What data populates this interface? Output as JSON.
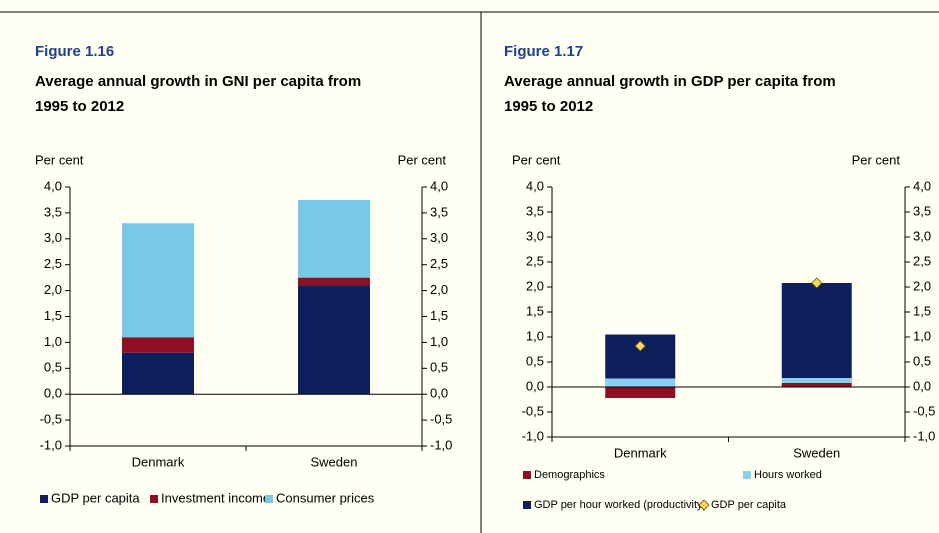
{
  "chart_data": [
    {
      "type": "bar",
      "stacked": true,
      "title": "Figure 1.16",
      "subtitle": "Average annual growth in GNI per capita from 1995 to 2012",
      "y_label": "Per cent",
      "y2_label": "Per cent",
      "categories": [
        "Denmark",
        "Sweden"
      ],
      "series": [
        {
          "name": "GDP per capita",
          "color": "#0e1f5e",
          "values": [
            0.8,
            2.1
          ]
        },
        {
          "name": "Investment income",
          "color": "#8e0f24",
          "values": [
            0.3,
            0.15
          ]
        },
        {
          "name": "Consumer prices",
          "color": "#78c8e6",
          "values": [
            2.2,
            1.5
          ]
        }
      ],
      "ylim": [
        -1,
        4
      ],
      "yticks": [
        {
          "value": -1,
          "label": "-1,0"
        },
        {
          "value": -0.5,
          "label": "-0,5"
        },
        {
          "value": 0,
          "label": "0,0"
        },
        {
          "value": 0.5,
          "label": "0,5"
        },
        {
          "value": 1,
          "label": "1,0"
        },
        {
          "value": 1.5,
          "label": "1,5"
        },
        {
          "value": 2,
          "label": "2,0"
        },
        {
          "value": 2.5,
          "label": "2,5"
        },
        {
          "value": 3,
          "label": "3,0"
        },
        {
          "value": 3.5,
          "label": "3,5"
        },
        {
          "value": 4,
          "label": "4,0"
        }
      ],
      "y2lim": [
        -1,
        4
      ],
      "y2ticks": [
        {
          "value": -1,
          "label": "-1,0"
        },
        {
          "value": -0.5,
          "label": "-0,5"
        },
        {
          "value": 0,
          "label": "0,0"
        },
        {
          "value": 0.5,
          "label": "0,5"
        },
        {
          "value": 1,
          "label": "1,0"
        },
        {
          "value": 1.5,
          "label": "1,5"
        },
        {
          "value": 2,
          "label": "2,0"
        },
        {
          "value": 2.5,
          "label": "2,5"
        },
        {
          "value": 3,
          "label": "3,0"
        },
        {
          "value": 3.5,
          "label": "3,5"
        },
        {
          "value": 4,
          "label": "4,0"
        }
      ]
    },
    {
      "type": "bar",
      "stacked": true,
      "title": "Figure 1.17",
      "subtitle": "Average annual growth in GDP per capita from 1995 to 2012",
      "y_label": "Per cent",
      "y2_label": "Per cent",
      "categories": [
        "Denmark",
        "Sweden"
      ],
      "series": [
        {
          "name": "Demographics",
          "color": "#8e0f24",
          "values": [
            -0.22,
            0.08
          ]
        },
        {
          "name": "Hours worked",
          "color": "#8bd0ea",
          "values": [
            0.17,
            0.1
          ]
        },
        {
          "name": "GDP per hour worked (productivity)",
          "color": "#0e1f5e",
          "values": [
            0.88,
            1.9
          ]
        },
        {
          "name": "GDP per capita",
          "type": "scatter",
          "marker": "diamond",
          "color": "#f5d55c",
          "values": [
            0.82,
            2.08
          ]
        }
      ],
      "ylim": [
        -1,
        4
      ],
      "yticks": [
        {
          "value": -1,
          "label": "-1,0"
        },
        {
          "value": -0.5,
          "label": "-0,5"
        },
        {
          "value": 0,
          "label": "0,0"
        },
        {
          "value": 0.5,
          "label": "0,5"
        },
        {
          "value": 1,
          "label": "1,0"
        },
        {
          "value": 1.5,
          "label": "1,5"
        },
        {
          "value": 2,
          "label": "2,0"
        },
        {
          "value": 2.5,
          "label": "2,5"
        },
        {
          "value": 3,
          "label": "3,0"
        },
        {
          "value": 3.5,
          "label": "3,5"
        },
        {
          "value": 4,
          "label": "4,0"
        }
      ],
      "y2lim": [
        -1,
        4
      ],
      "y2ticks": [
        {
          "value": -1,
          "label": "-1,0"
        },
        {
          "value": -0.5,
          "label": "-0,5"
        },
        {
          "value": 0,
          "label": "0,0"
        },
        {
          "value": 0.5,
          "label": "0,5"
        },
        {
          "value": 1,
          "label": "1,0"
        },
        {
          "value": 1.5,
          "label": "1,5"
        },
        {
          "value": 2,
          "label": "2,0"
        },
        {
          "value": 2.5,
          "label": "2,5"
        },
        {
          "value": 3,
          "label": "3,0"
        },
        {
          "value": 3.5,
          "label": "3,5"
        },
        {
          "value": 4,
          "label": "4,0"
        }
      ]
    }
  ]
}
